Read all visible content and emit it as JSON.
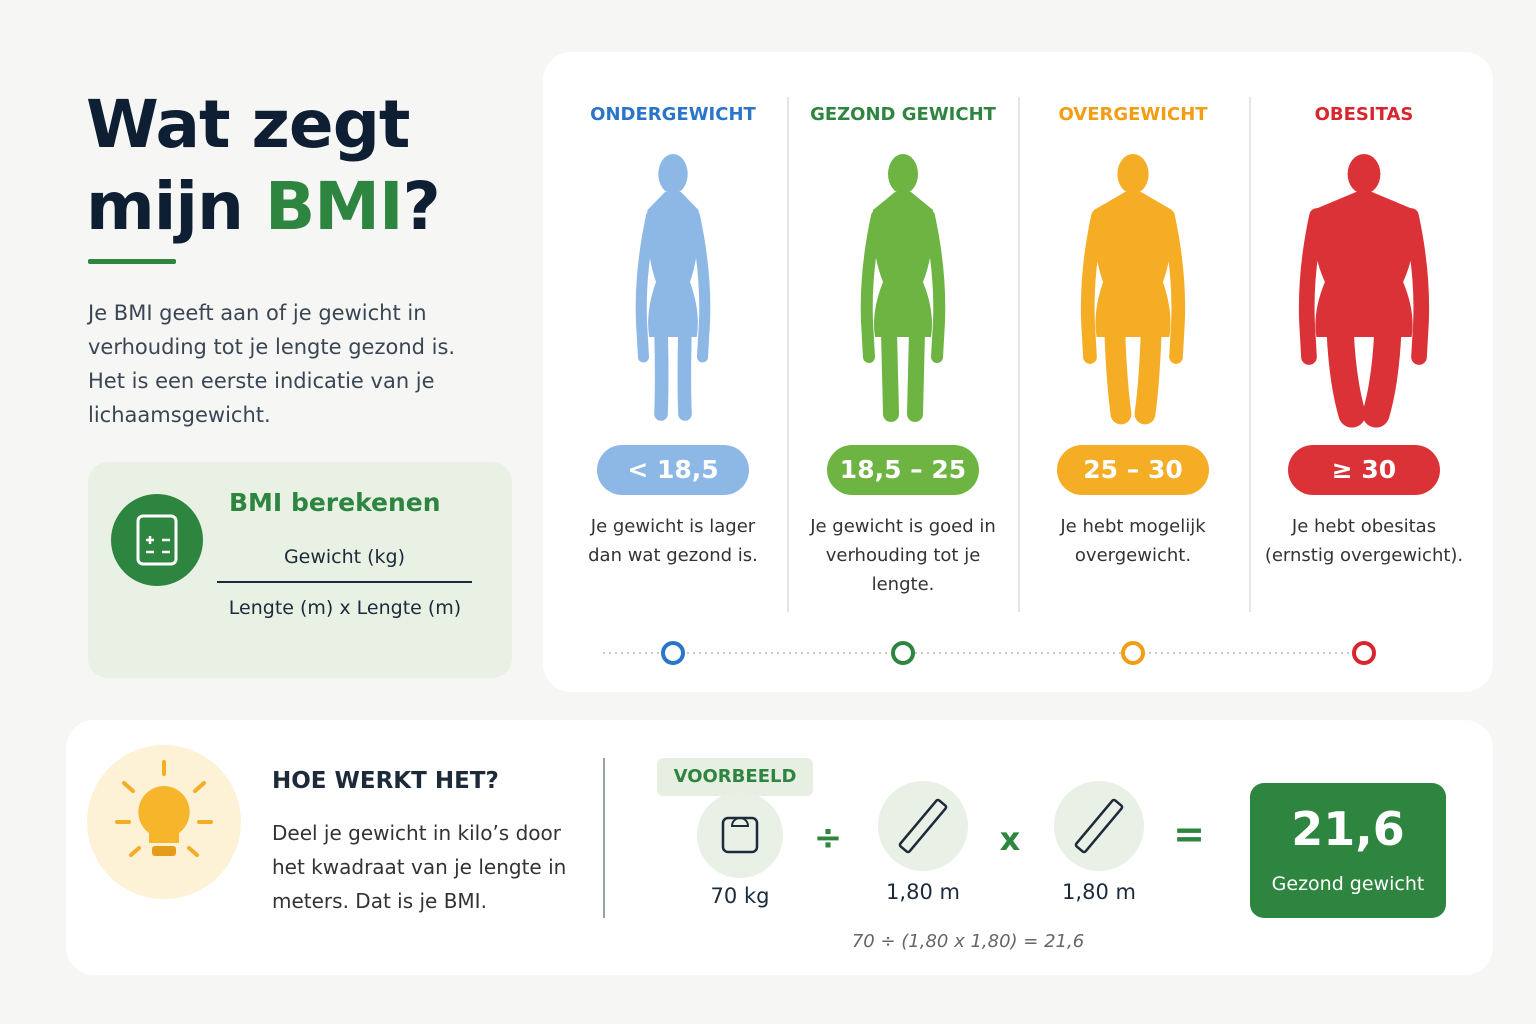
{
  "header": {
    "title_line1": "Wat zegt",
    "title_line2": "mijn",
    "title_highlight": "BMI",
    "title_end": "?",
    "intro": "Je BMI geeft aan of je gewicht in verhouding tot je lengte gezond is. Het is een eerste indicatie van je lichaamsgewicht."
  },
  "formula": {
    "title": "BMI berekenen",
    "numerator": "Gewicht (kg)",
    "denominator": "Lengte (m) x Lengte (m)"
  },
  "categories": [
    {
      "name": "ONDERGEWICHT",
      "range": "< 18,5",
      "description": "Je gewicht is lager dan wat gezond is.",
      "color": "#8db8e6",
      "accent": "#2a75c8"
    },
    {
      "name": "GEZOND GEWICHT",
      "range": "18,5 – 25",
      "description": "Je gewicht is goed in verhouding tot je lengte.",
      "color": "#6db443",
      "accent": "#2e8540"
    },
    {
      "name": "OVERGEWICHT",
      "range": "25 – 30",
      "description": "Je hebt mogelijk overgewicht.",
      "color": "#f5ad25",
      "accent": "#f29d12"
    },
    {
      "name": "OBESITAS",
      "range": "≥ 30",
      "description": "Je hebt obesitas (ernstig overgewicht).",
      "color": "#db3238",
      "accent": "#d8262e"
    }
  ],
  "how": {
    "title": "HOE WERKT HET?",
    "text": "Deel je gewicht in kilo’s door het kwadraat van je lengte in meters. Dat is je BMI."
  },
  "example": {
    "label": "VOORBEELD",
    "weight": "70 kg",
    "divide": "÷",
    "height1": "1,80 m",
    "times": "x",
    "height2": "1,80 m",
    "equals": "=",
    "result": "21,6",
    "result_label": "Gezond gewicht",
    "calculation": "70 ÷ (1,80 x 1,80) = 21,6"
  }
}
